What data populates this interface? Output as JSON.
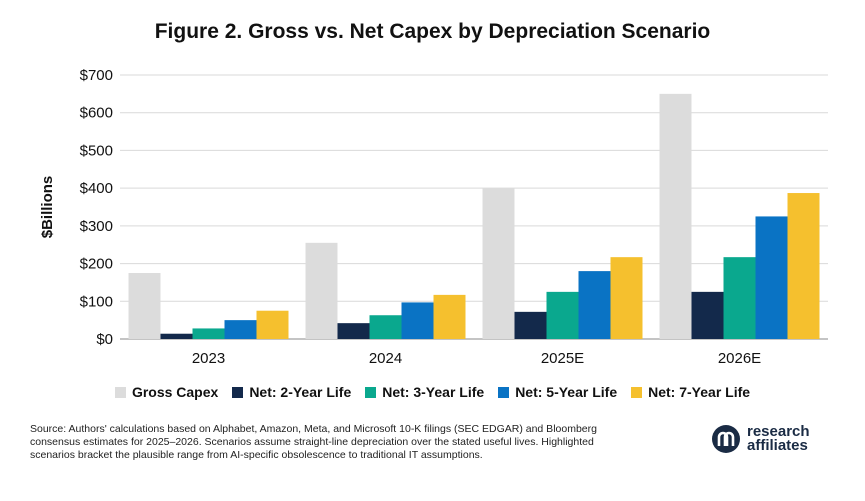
{
  "chart_data": {
    "type": "bar",
    "title": "Figure 2. Gross vs. Net Capex by Depreciation Scenario",
    "xlabel": "",
    "ylabel": "$Billions",
    "ylim": [
      0,
      700
    ],
    "yticks": [
      0,
      100,
      200,
      300,
      400,
      500,
      600,
      700
    ],
    "ytick_labels": [
      "$0",
      "$100",
      "$200",
      "$300",
      "$400",
      "$500",
      "$600",
      "$700"
    ],
    "grid": true,
    "legend_position": "bottom",
    "categories": [
      "2023",
      "2024",
      "2025E",
      "2026E"
    ],
    "series": [
      {
        "name": "Gross Capex",
        "color": "#dcdcdc",
        "values": [
          175,
          255,
          400,
          650
        ]
      },
      {
        "name": "Net: 2-Year Life",
        "color": "#13294b",
        "values": [
          14,
          42,
          72,
          125
        ]
      },
      {
        "name": "Net: 3-Year Life",
        "color": "#0aa88e",
        "values": [
          28,
          63,
          125,
          217
        ]
      },
      {
        "name": "Net: 5-Year Life",
        "color": "#0a73c4",
        "values": [
          50,
          97,
          180,
          325
        ]
      },
      {
        "name": "Net: 7-Year Life",
        "color": "#f5c02e",
        "values": [
          75,
          117,
          217,
          387
        ]
      }
    ]
  },
  "source_note": "Source: Authors' calculations based on Alphabet, Amazon, Meta, and Microsoft 10-K filings (SEC EDGAR) and Bloomberg consensus estimates for 2025–2026. Scenarios assume straight-line depreciation over the stated useful lives. Highlighted scenarios bracket the plausible range from AI-specific obsolescence to traditional IT assumptions.",
  "logo": {
    "line1": "research",
    "line2": "affiliates",
    "icon": "research-affiliates-logo-icon",
    "color": "#1a2b44"
  }
}
